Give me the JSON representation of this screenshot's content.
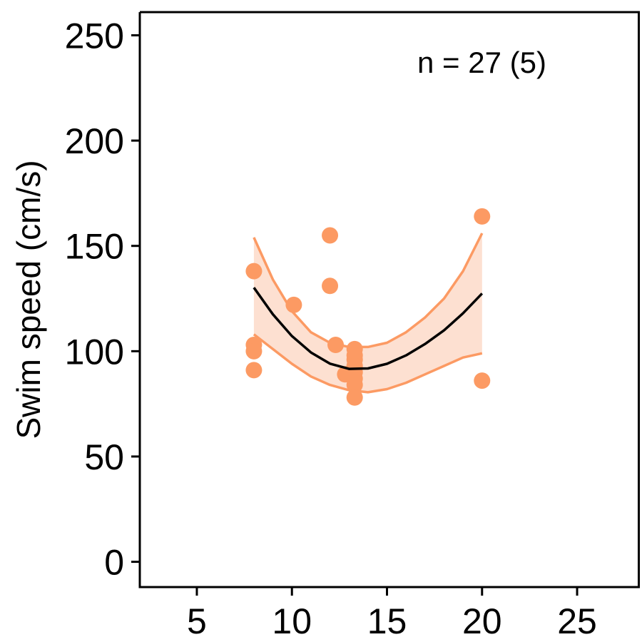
{
  "chart_data": {
    "type": "scatter",
    "title": "",
    "xlabel": "",
    "ylabel": "Swim speed (cm/s)",
    "xlim": [
      2,
      28.3
    ],
    "ylim": [
      -12,
      261
    ],
    "xticks": [
      5,
      10,
      15,
      20,
      25
    ],
    "yticks": [
      0,
      50,
      100,
      150,
      200,
      250
    ],
    "annotation": "n = 27 (5)",
    "grid": false,
    "legend": "none",
    "colors": {
      "points": "#fc9a63",
      "ci_fill": "#fde0d1",
      "ci_line": "#fc9a63",
      "fit": "#000000"
    },
    "points": [
      {
        "x": 8,
        "y": 138
      },
      {
        "x": 8,
        "y": 103
      },
      {
        "x": 8,
        "y": 100
      },
      {
        "x": 8,
        "y": 91
      },
      {
        "x": 10.1,
        "y": 122
      },
      {
        "x": 12,
        "y": 155
      },
      {
        "x": 12,
        "y": 131
      },
      {
        "x": 12.3,
        "y": 103
      },
      {
        "x": 12.8,
        "y": 89
      },
      {
        "x": 13.3,
        "y": 101
      },
      {
        "x": 13.3,
        "y": 98
      },
      {
        "x": 13.3,
        "y": 96
      },
      {
        "x": 13.3,
        "y": 93
      },
      {
        "x": 13.3,
        "y": 90
      },
      {
        "x": 13.3,
        "y": 87
      },
      {
        "x": 13.3,
        "y": 84
      },
      {
        "x": 13.3,
        "y": 78
      },
      {
        "x": 20,
        "y": 164
      },
      {
        "x": 20,
        "y": 86
      }
    ],
    "fit": {
      "x": [
        8,
        9,
        10,
        11,
        12,
        13,
        14,
        15,
        16,
        17,
        18,
        19,
        20
      ],
      "y": [
        130.2,
        117.5,
        107.2,
        99.4,
        94.1,
        91.6,
        91.8,
        94.0,
        98.0,
        103.4,
        109.9,
        118.0,
        127.4
      ],
      "ci_upper": [
        154.0,
        134.0,
        119.0,
        109.0,
        104.0,
        102.0,
        102.0,
        104.0,
        109.0,
        116.0,
        125.0,
        138.0,
        156.0
      ],
      "ci_lower": [
        108.0,
        101.0,
        94.0,
        88.0,
        84.0,
        81.5,
        80.5,
        82.0,
        85.0,
        89.0,
        93.0,
        97.0,
        99.0
      ]
    }
  }
}
